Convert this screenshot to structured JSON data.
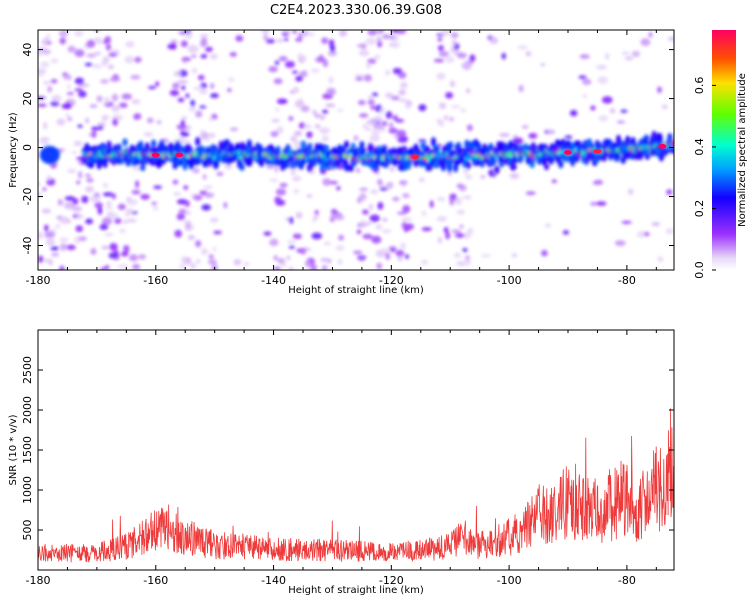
{
  "title": "C2E4.2023.330.06.39.G08",
  "chart_data": [
    {
      "type": "heatmap",
      "xlabel": "Height of straight line (km)",
      "ylabel": "Frequency (Hz)",
      "xlim": [
        -180,
        -72
      ],
      "ylim": [
        -50,
        48
      ],
      "xticks": [
        -180,
        -160,
        -140,
        -120,
        -100,
        -80
      ],
      "yticks": [
        -40,
        -20,
        0,
        20,
        40
      ],
      "band_center_hz": [
        [
          -172,
          -3
        ],
        [
          -150,
          -3
        ],
        [
          -120,
          -4
        ],
        [
          -100,
          -3
        ],
        [
          -80,
          -1
        ],
        [
          -72,
          1
        ]
      ],
      "band_peak_amplitude": [
        [
          -160,
          0.8
        ],
        [
          -156,
          0.85
        ],
        [
          -116,
          0.75
        ],
        [
          -90,
          0.8
        ],
        [
          -85,
          0.75
        ],
        [
          -74,
          0.85
        ]
      ],
      "colorbar": {
        "label": "Normalized spectral amplitude",
        "range": [
          0.0,
          0.78
        ],
        "ticks": [
          0.0,
          0.2,
          0.4,
          0.6
        ]
      },
      "grid": false
    },
    {
      "type": "line",
      "xlabel": "Height of straight line (km)",
      "ylabel": "SNR (10 * v/v)",
      "xlim": [
        -180,
        -72
      ],
      "ylim": [
        0,
        3000
      ],
      "xticks": [
        -180,
        -160,
        -140,
        -120,
        -100,
        -80
      ],
      "yticks": [
        500,
        1000,
        1500,
        2000,
        2500
      ],
      "color": "#ee3a3a",
      "series": [
        {
          "x": [
            -180,
            -175,
            -170,
            -165,
            -160,
            -158,
            -155,
            -150,
            -145,
            -140,
            -135,
            -130,
            -125,
            -120,
            -115,
            -110,
            -108,
            -105,
            -100,
            -97,
            -95,
            -92,
            -90,
            -87,
            -85,
            -82,
            -80,
            -78,
            -75,
            -73,
            -72
          ],
          "y": [
            250,
            250,
            260,
            350,
            600,
            650,
            500,
            380,
            350,
            320,
            300,
            300,
            280,
            260,
            300,
            380,
            500,
            380,
            500,
            650,
            900,
            800,
            1100,
            1000,
            900,
            1000,
            1100,
            900,
            1200,
            1500,
            2000
          ]
        }
      ],
      "grid": false
    }
  ]
}
